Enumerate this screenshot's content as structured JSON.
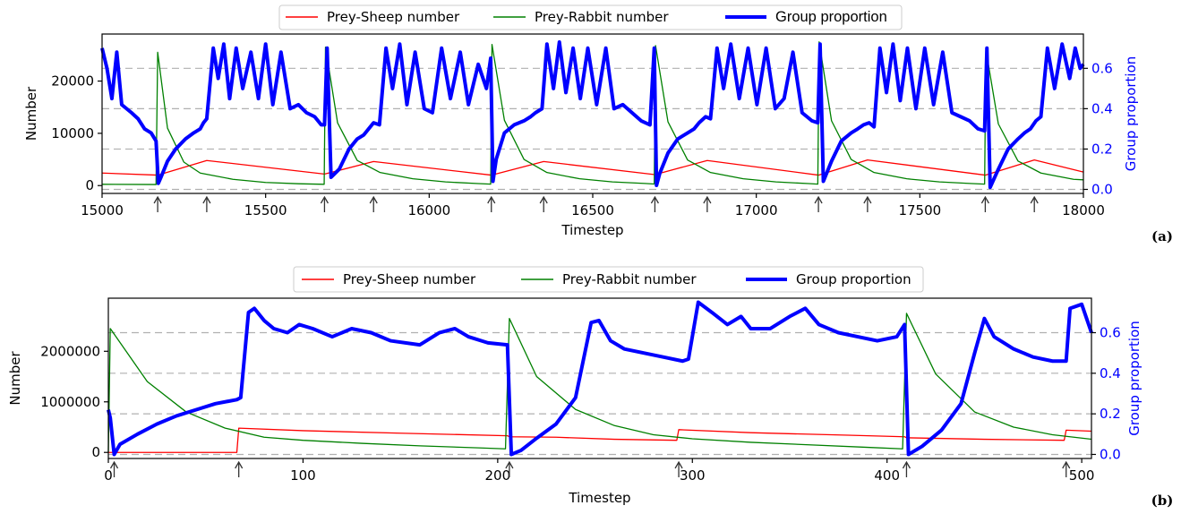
{
  "chart_data": [
    {
      "panel_label": "(a)",
      "type": "line",
      "xlabel": "Timestep",
      "ylabel": "Number",
      "y2label": "Group proportion",
      "xlim": [
        15000,
        18000
      ],
      "ylim": [
        -1500,
        29000
      ],
      "y2lim": [
        -0.02,
        0.77
      ],
      "xticks": [
        15000,
        15500,
        16000,
        16500,
        17000,
        17500,
        18000
      ],
      "yticks": [
        0,
        10000,
        20000
      ],
      "y2ticks": [
        0.0,
        0.2,
        0.4,
        0.6
      ],
      "y2_tick_labels": [
        "0.0",
        "0.2",
        "0.4",
        "0.6"
      ],
      "grid": "horizontal-dashed",
      "legend": "top-center",
      "arrows_at": [
        15170,
        15320,
        15680,
        15830,
        16190,
        16350,
        16690,
        16850,
        17190,
        17340,
        17700,
        17850
      ],
      "series": [
        {
          "name": "Prey-Sheep number",
          "axis": "left",
          "color": "#ff0000",
          "x": [
            15000,
            15170,
            15170,
            15320,
            15320,
            15680,
            15680,
            15830,
            15830,
            16190,
            16190,
            16350,
            16350,
            16690,
            16690,
            16850,
            16850,
            17190,
            17190,
            17340,
            17340,
            17700,
            17700,
            17850,
            17850,
            18000
          ],
          "values": [
            2400,
            2000,
            2000,
            4800,
            4800,
            2200,
            2200,
            4600,
            4600,
            2000,
            2000,
            4600,
            4600,
            2100,
            2100,
            4800,
            4800,
            2000,
            2000,
            4900,
            4900,
            2000,
            2000,
            4900,
            4900,
            2600
          ]
        },
        {
          "name": "Prey-Rabbit number",
          "axis": "left",
          "color": "#008000",
          "x": [
            15000,
            15165,
            15170,
            15200,
            15250,
            15300,
            15400,
            15500,
            15600,
            15679,
            15683,
            15720,
            15780,
            15850,
            15950,
            16050,
            16150,
            16188,
            16192,
            16230,
            16290,
            16360,
            16460,
            16560,
            16660,
            16688,
            16692,
            16730,
            16790,
            16860,
            16960,
            17060,
            17160,
            17188,
            17192,
            17230,
            17290,
            17360,
            17460,
            17560,
            17660,
            17698,
            17702,
            17740,
            17800,
            17870,
            17970,
            18000
          ],
          "values": [
            250,
            200,
            25500,
            11000,
            4500,
            2400,
            1200,
            600,
            350,
            250,
            26500,
            12000,
            4800,
            2500,
            1300,
            700,
            380,
            280,
            27000,
            12500,
            5000,
            2500,
            1300,
            700,
            400,
            300,
            26800,
            12200,
            4900,
            2500,
            1300,
            700,
            380,
            280,
            27500,
            12400,
            5000,
            2500,
            1300,
            700,
            380,
            280,
            26000,
            11800,
            4700,
            2400,
            1200,
            1100
          ]
        },
        {
          "name": "Group proportion",
          "axis": "right",
          "color": "#0000ff",
          "x": [
            15000,
            15015,
            15030,
            15045,
            15060,
            15075,
            15090,
            15110,
            15130,
            15150,
            15165,
            15172,
            15180,
            15200,
            15225,
            15255,
            15280,
            15300,
            15310,
            15320,
            15340,
            15355,
            15372,
            15390,
            15410,
            15430,
            15455,
            15478,
            15500,
            15522,
            15547,
            15575,
            15600,
            15625,
            15650,
            15670,
            15680,
            15688,
            15700,
            15725,
            15755,
            15780,
            15800,
            15815,
            15830,
            15848,
            15868,
            15888,
            15910,
            15932,
            15957,
            15985,
            16010,
            16038,
            16065,
            16095,
            16120,
            16150,
            16175,
            16188,
            16195,
            16205,
            16230,
            16260,
            16290,
            16310,
            16325,
            16345,
            16360,
            16380,
            16398,
            16418,
            16440,
            16462,
            16485,
            16512,
            16540,
            16565,
            16592,
            16620,
            16648,
            16675,
            16688,
            16695,
            16705,
            16730,
            16760,
            16790,
            16810,
            16825,
            16845,
            16860,
            16880,
            16900,
            16922,
            16948,
            16975,
            17002,
            17030,
            17058,
            17085,
            17112,
            17140,
            17170,
            17188,
            17195,
            17205,
            17230,
            17260,
            17290,
            17310,
            17328,
            17345,
            17360,
            17378,
            17398,
            17418,
            17440,
            17462,
            17488,
            17515,
            17542,
            17570,
            17598,
            17625,
            17652,
            17678,
            17698,
            17705,
            17715,
            17740,
            17770,
            17800,
            17820,
            17838,
            17855,
            17870,
            17890,
            17912,
            17935,
            17958,
            17975,
            17990,
            18000
          ],
          "values": [
            0.7,
            0.6,
            0.45,
            0.68,
            0.42,
            0.4,
            0.38,
            0.35,
            0.3,
            0.28,
            0.24,
            0.03,
            0.06,
            0.14,
            0.2,
            0.25,
            0.28,
            0.3,
            0.33,
            0.35,
            0.7,
            0.55,
            0.72,
            0.45,
            0.7,
            0.5,
            0.68,
            0.45,
            0.72,
            0.42,
            0.68,
            0.4,
            0.42,
            0.38,
            0.36,
            0.32,
            0.32,
            0.7,
            0.06,
            0.1,
            0.2,
            0.25,
            0.27,
            0.3,
            0.33,
            0.32,
            0.7,
            0.5,
            0.72,
            0.42,
            0.68,
            0.4,
            0.38,
            0.7,
            0.45,
            0.68,
            0.42,
            0.62,
            0.5,
            0.65,
            0.04,
            0.15,
            0.28,
            0.32,
            0.34,
            0.36,
            0.38,
            0.4,
            0.72,
            0.5,
            0.73,
            0.48,
            0.7,
            0.45,
            0.7,
            0.42,
            0.7,
            0.4,
            0.42,
            0.38,
            0.34,
            0.32,
            0.7,
            0.02,
            0.08,
            0.18,
            0.25,
            0.28,
            0.3,
            0.33,
            0.36,
            0.35,
            0.7,
            0.5,
            0.72,
            0.45,
            0.7,
            0.42,
            0.7,
            0.4,
            0.45,
            0.68,
            0.38,
            0.34,
            0.33,
            0.72,
            0.04,
            0.14,
            0.24,
            0.28,
            0.3,
            0.32,
            0.33,
            0.31,
            0.7,
            0.48,
            0.72,
            0.44,
            0.7,
            0.4,
            0.7,
            0.42,
            0.68,
            0.38,
            0.36,
            0.34,
            0.3,
            0.29,
            0.7,
            0.01,
            0.1,
            0.2,
            0.25,
            0.28,
            0.3,
            0.34,
            0.36,
            0.7,
            0.5,
            0.72,
            0.55,
            0.7,
            0.6,
            0.62
          ]
        }
      ]
    },
    {
      "panel_label": "(b)",
      "type": "line",
      "xlabel": "Timestep",
      "ylabel": "Number",
      "y2label": "Group proportion",
      "xlim": [
        0,
        505
      ],
      "ylim": [
        -120000,
        3050000
      ],
      "y2lim": [
        -0.02,
        0.77
      ],
      "xticks": [
        0,
        100,
        200,
        300,
        400,
        500
      ],
      "yticks": [
        0,
        1000000,
        2000000
      ],
      "y2ticks": [
        0.0,
        0.2,
        0.4,
        0.6
      ],
      "y2_tick_labels": [
        "0.0",
        "0.2",
        "0.4",
        "0.6"
      ],
      "grid": "horizontal-dashed",
      "legend": "top-center",
      "arrows_at": [
        3,
        67,
        206,
        293,
        410,
        492
      ],
      "series": [
        {
          "name": "Prey-Sheep number",
          "axis": "left",
          "color": "#ff0000",
          "x": [
            0,
            66,
            67,
            100,
            150,
            205,
            206,
            230,
            260,
            292,
            293,
            330,
            380,
            409,
            410,
            450,
            491,
            492,
            505
          ],
          "values": [
            0,
            0,
            480000,
            430000,
            380000,
            330000,
            310000,
            300000,
            260000,
            240000,
            450000,
            390000,
            340000,
            310000,
            290000,
            260000,
            240000,
            440000,
            420000
          ]
        },
        {
          "name": "Prey-Rabbit number",
          "axis": "left",
          "color": "#008000",
          "x": [
            0,
            1,
            20,
            40,
            60,
            80,
            100,
            130,
            160,
            190,
            204,
            206,
            220,
            240,
            260,
            280,
            300,
            330,
            360,
            390,
            408,
            410,
            425,
            445,
            465,
            485,
            505
          ],
          "values": [
            0,
            2450000,
            1400000,
            800000,
            480000,
            300000,
            240000,
            180000,
            130000,
            90000,
            70000,
            2650000,
            1500000,
            850000,
            530000,
            350000,
            270000,
            200000,
            150000,
            100000,
            70000,
            2750000,
            1550000,
            800000,
            500000,
            350000,
            260000
          ]
        },
        {
          "name": "Group proportion",
          "axis": "right",
          "color": "#0000ff",
          "x": [
            0,
            1,
            3,
            6,
            15,
            25,
            35,
            45,
            55,
            66,
            68,
            72,
            75,
            80,
            85,
            92,
            98,
            105,
            115,
            125,
            135,
            145,
            160,
            170,
            178,
            185,
            195,
            205,
            207,
            212,
            220,
            230,
            240,
            248,
            252,
            258,
            265,
            275,
            285,
            295,
            298,
            303,
            310,
            318,
            325,
            330,
            340,
            350,
            358,
            365,
            375,
            385,
            395,
            405,
            409,
            411,
            418,
            428,
            438,
            445,
            450,
            455,
            465,
            475,
            485,
            492,
            494,
            500,
            505
          ],
          "values": [
            0.22,
            0.18,
            0.0,
            0.05,
            0.1,
            0.15,
            0.19,
            0.22,
            0.25,
            0.27,
            0.28,
            0.7,
            0.72,
            0.66,
            0.62,
            0.6,
            0.64,
            0.62,
            0.58,
            0.62,
            0.6,
            0.56,
            0.54,
            0.6,
            0.62,
            0.58,
            0.55,
            0.54,
            0.0,
            0.02,
            0.08,
            0.15,
            0.28,
            0.65,
            0.66,
            0.56,
            0.52,
            0.5,
            0.48,
            0.46,
            0.47,
            0.75,
            0.7,
            0.64,
            0.68,
            0.62,
            0.62,
            0.68,
            0.72,
            0.64,
            0.6,
            0.58,
            0.56,
            0.58,
            0.64,
            0.0,
            0.04,
            0.12,
            0.25,
            0.5,
            0.67,
            0.58,
            0.52,
            0.48,
            0.46,
            0.46,
            0.72,
            0.74,
            0.6
          ]
        }
      ]
    }
  ]
}
